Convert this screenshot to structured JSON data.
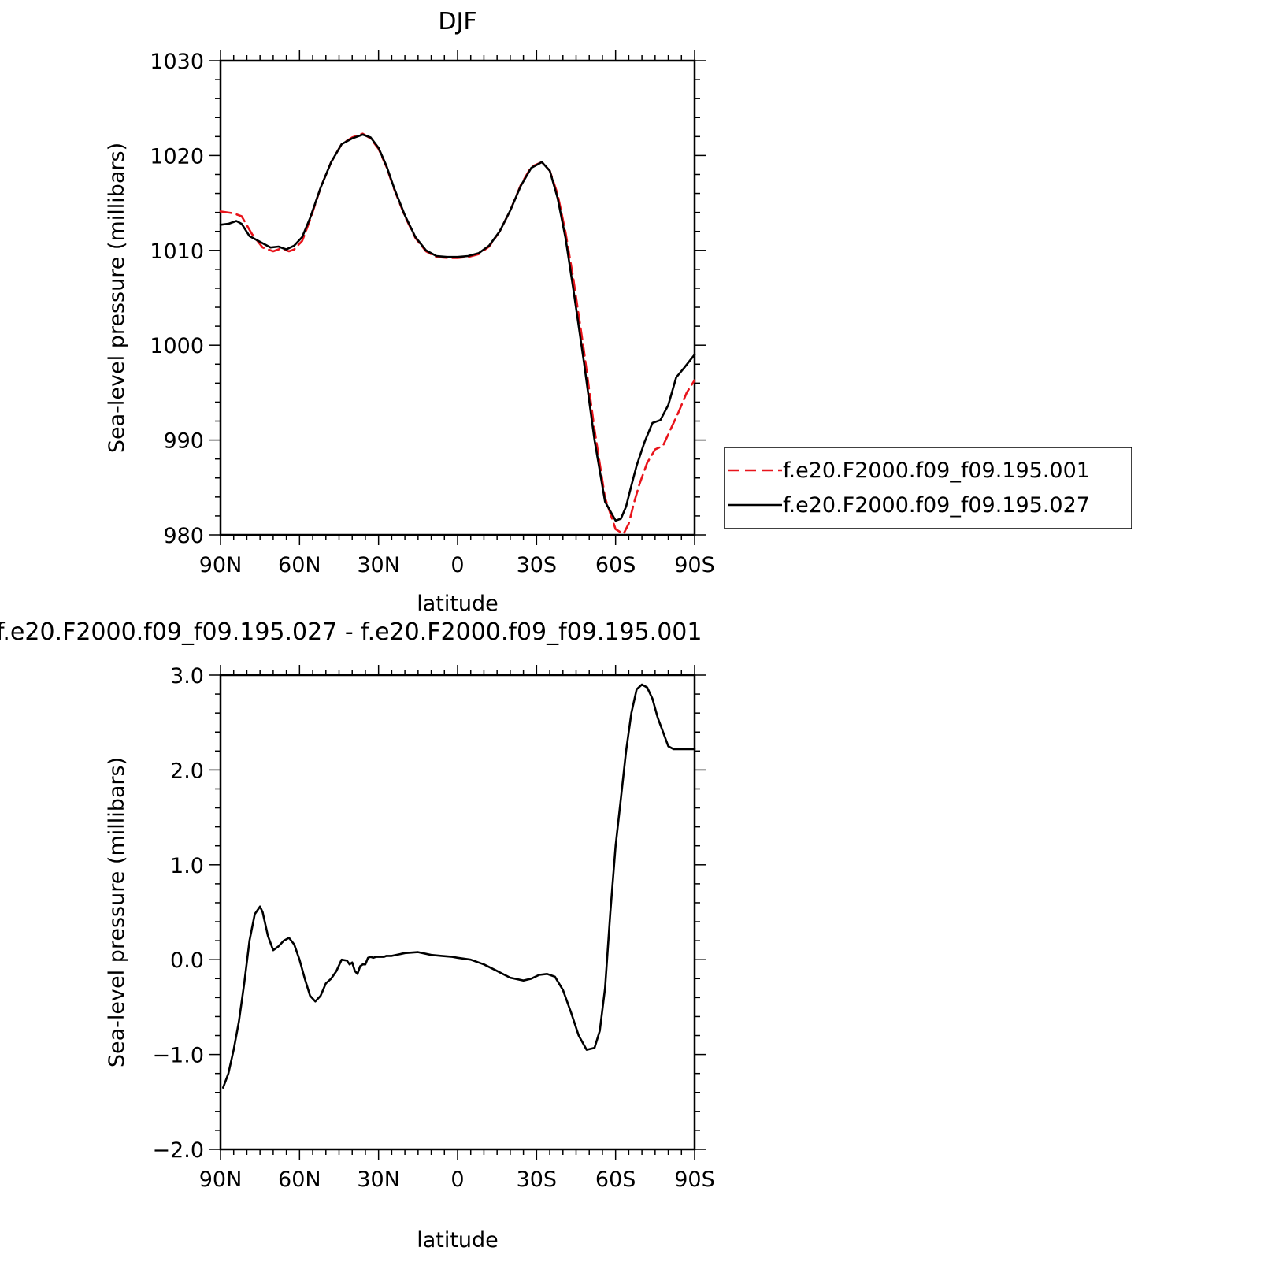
{
  "chart_data": [
    {
      "type": "line",
      "title": "DJF",
      "xlabel": "latitude",
      "ylabel": "Sea-level pressure (millibars)",
      "xlim": [
        90,
        -90
      ],
      "ylim": [
        980,
        1030
      ],
      "x_ticks": [
        90,
        60,
        30,
        0,
        -30,
        -60,
        -90
      ],
      "x_tick_labels": [
        "90N",
        "60N",
        "30N",
        "0",
        "30S",
        "60S",
        "90S"
      ],
      "y_ticks": [
        980,
        990,
        1000,
        1010,
        1020,
        1030
      ],
      "y_tick_labels": [
        "980",
        "990",
        "1000",
        "1010",
        "1020",
        "1030"
      ],
      "legend_position": "right, outside plot",
      "series": [
        {
          "name": "f.e20.F2000.f09_f09.195.001",
          "color": "#e8141b",
          "style": "dashed",
          "x": [
            90,
            85,
            82,
            78,
            74,
            70,
            67,
            64,
            62,
            59,
            56,
            52,
            48,
            44,
            40,
            36,
            33,
            30,
            27,
            24,
            20,
            16,
            12,
            8,
            4,
            0,
            -4,
            -8,
            -12,
            -16,
            -20,
            -24,
            -28,
            -32,
            -35,
            -38,
            -41,
            -44,
            -48,
            -52,
            -56,
            -60,
            -63,
            -65,
            -67,
            -69,
            -72,
            -75,
            -78,
            -81,
            -84,
            -87,
            -90
          ],
          "values": [
            1014.1,
            1013.9,
            1013.6,
            1011.7,
            1010.3,
            1009.9,
            1010.2,
            1009.9,
            1010.1,
            1011.0,
            1013.2,
            1016.6,
            1019.3,
            1021.2,
            1021.9,
            1022.3,
            1021.8,
            1020.7,
            1018.8,
            1016.4,
            1013.6,
            1011.3,
            1009.9,
            1009.3,
            1009.2,
            1009.2,
            1009.3,
            1009.6,
            1010.4,
            1012.0,
            1014.2,
            1016.9,
            1018.8,
            1019.3,
            1018.4,
            1015.9,
            1011.9,
            1006.9,
            999.4,
            991.1,
            983.9,
            980.6,
            980.1,
            981.2,
            983.4,
            985.3,
            987.6,
            989.0,
            989.4,
            991.2,
            993.0,
            995.0,
            996.3
          ]
        },
        {
          "name": "f.e20.F2000.f09_f09.195.027",
          "color": "#000000",
          "style": "solid",
          "x": [
            90,
            87,
            84,
            82,
            79,
            75,
            71,
            68,
            65,
            62,
            59,
            56,
            52,
            48,
            44,
            40,
            36,
            33,
            30,
            27,
            24,
            20,
            16,
            12,
            8,
            4,
            0,
            -4,
            -8,
            -12,
            -16,
            -20,
            -24,
            -28,
            -32,
            -35,
            -38,
            -41,
            -44,
            -48,
            -52,
            -56,
            -60,
            -62,
            -64,
            -66,
            -68,
            -71,
            -74,
            -77,
            -80,
            -83,
            -86,
            -90
          ],
          "values": [
            1012.7,
            1012.8,
            1013.1,
            1012.8,
            1011.5,
            1010.9,
            1010.3,
            1010.4,
            1010.1,
            1010.5,
            1011.4,
            1013.4,
            1016.6,
            1019.3,
            1021.2,
            1021.8,
            1022.2,
            1021.9,
            1020.8,
            1018.9,
            1016.5,
            1013.7,
            1011.4,
            1010.0,
            1009.4,
            1009.3,
            1009.3,
            1009.4,
            1009.7,
            1010.5,
            1012.0,
            1014.2,
            1016.8,
            1018.7,
            1019.3,
            1018.4,
            1015.5,
            1011.3,
            1005.8,
            998.2,
            990.0,
            983.5,
            981.5,
            981.7,
            983.0,
            985.2,
            987.3,
            989.8,
            991.8,
            992.1,
            993.7,
            996.6,
            997.6,
            999.0
          ]
        }
      ]
    },
    {
      "type": "line",
      "title": "f.e20.F2000.f09_f09.195.027 - f.e20.F2000.f09_f09.195.001",
      "xlabel": "latitude",
      "ylabel": "Sea-level pressure (millibars)",
      "xlim": [
        90,
        -90
      ],
      "ylim": [
        -2.0,
        3.0
      ],
      "x_ticks": [
        90,
        60,
        30,
        0,
        -30,
        -60,
        -90
      ],
      "x_tick_labels": [
        "90N",
        "60N",
        "30N",
        "0",
        "30S",
        "60S",
        "90S"
      ],
      "y_ticks": [
        -2.0,
        -1.0,
        0.0,
        1.0,
        2.0,
        3.0
      ],
      "y_tick_labels": [
        "−2.0",
        "−1.0",
        "0.0",
        "1.0",
        "2.0",
        "3.0"
      ],
      "series": [
        {
          "color": "#000000",
          "style": "solid",
          "x": [
            89,
            87,
            85,
            83,
            81,
            79,
            77,
            75,
            74,
            72,
            70,
            68,
            66,
            64,
            62,
            60,
            58,
            56,
            54,
            52,
            50,
            48,
            46,
            44,
            42,
            41,
            40,
            39,
            38,
            37,
            36,
            35,
            34,
            33,
            32,
            31,
            30,
            29,
            28,
            27,
            25,
            20,
            15,
            10,
            6,
            2,
            0,
            -5,
            -10,
            -15,
            -20,
            -25,
            -28,
            -31,
            -34,
            -37,
            -40,
            -43,
            -46,
            -49,
            -52,
            -54,
            -56,
            -58,
            -60,
            -62,
            -64,
            -66,
            -68,
            -70,
            -72,
            -74,
            -76,
            -78,
            -80,
            -82,
            -84,
            -86,
            -88,
            -90
          ],
          "values": [
            -1.35,
            -1.2,
            -0.95,
            -0.65,
            -0.25,
            0.2,
            0.48,
            0.56,
            0.5,
            0.25,
            0.1,
            0.14,
            0.2,
            0.23,
            0.16,
            0.0,
            -0.2,
            -0.38,
            -0.44,
            -0.38,
            -0.25,
            -0.2,
            -0.12,
            0.0,
            -0.01,
            -0.05,
            -0.03,
            -0.12,
            -0.15,
            -0.07,
            -0.05,
            -0.05,
            0.02,
            0.03,
            0.02,
            0.03,
            0.03,
            0.03,
            0.03,
            0.04,
            0.04,
            0.07,
            0.08,
            0.05,
            0.04,
            0.03,
            0.02,
            0.0,
            -0.05,
            -0.12,
            -0.19,
            -0.22,
            -0.2,
            -0.16,
            -0.15,
            -0.18,
            -0.32,
            -0.55,
            -0.8,
            -0.95,
            -0.93,
            -0.75,
            -0.3,
            0.5,
            1.2,
            1.7,
            2.2,
            2.6,
            2.85,
            2.9,
            2.87,
            2.75,
            2.55,
            2.4,
            2.25,
            2.22,
            2.22,
            2.22,
            2.22,
            2.22
          ]
        }
      ]
    }
  ]
}
